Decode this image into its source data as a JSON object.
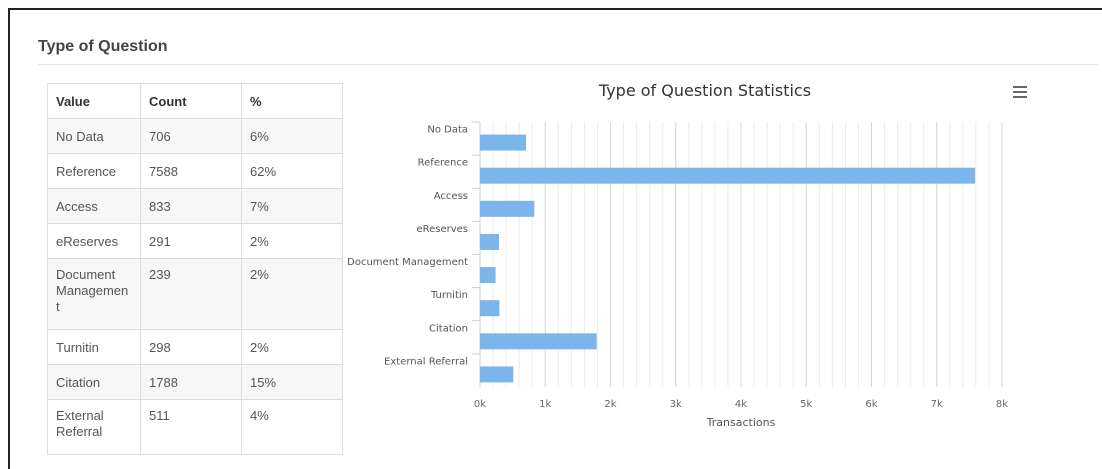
{
  "section": {
    "title": "Type of Question"
  },
  "table": {
    "headers": [
      "Value",
      "Count",
      "%"
    ],
    "rows": [
      {
        "value": "No Data",
        "count": "706",
        "pct": "6%"
      },
      {
        "value": "Reference",
        "count": "7588",
        "pct": "62%"
      },
      {
        "value": "Access",
        "count": "833",
        "pct": "7%"
      },
      {
        "value": "eReserves",
        "count": "291",
        "pct": "2%"
      },
      {
        "value": "Document Managemen t",
        "count": "239",
        "pct": "2%"
      },
      {
        "value": "Turnitin",
        "count": "298",
        "pct": "2%"
      },
      {
        "value": "Citation",
        "count": "1788",
        "pct": "15%"
      },
      {
        "value": "External Referral",
        "count": "511",
        "pct": "4%"
      }
    ]
  },
  "menu": {
    "icon": "hamburger-menu-icon"
  },
  "chart_data": {
    "type": "bar",
    "orientation": "horizontal",
    "title": "Type of Question Statistics",
    "xlabel": "Transactions",
    "ylabel": "",
    "categories": [
      "No Data",
      "Reference",
      "Access",
      "eReserves",
      "Document Management",
      "Turnitin",
      "Citation",
      "External Referral"
    ],
    "values": [
      706,
      7588,
      833,
      291,
      239,
      298,
      1788,
      511
    ],
    "xlim": [
      0,
      8000
    ],
    "ticks": [
      "0k",
      "1k",
      "2k",
      "3k",
      "4k",
      "5k",
      "6k",
      "7k",
      "8k"
    ],
    "grid": true,
    "bar_color": "#7cb5ec"
  }
}
